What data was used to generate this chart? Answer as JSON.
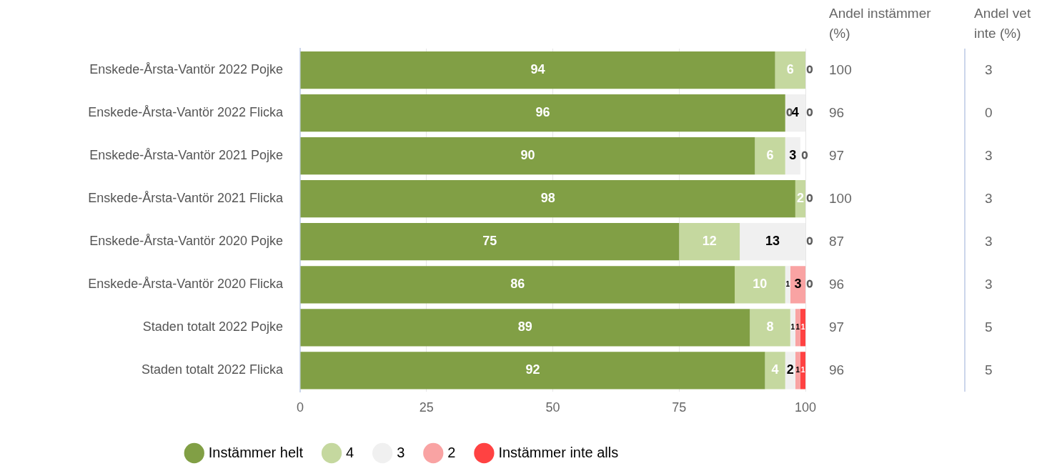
{
  "chart_data": {
    "type": "bar",
    "orientation": "horizontal",
    "stacked": true,
    "categories": [
      "Enskede-Årsta-Vantör 2022 Pojke",
      "Enskede-Årsta-Vantör 2022 Flicka",
      "Enskede-Årsta-Vantör 2021 Pojke",
      "Enskede-Årsta-Vantör 2021 Flicka",
      "Enskede-Årsta-Vantör 2020 Pojke",
      "Enskede-Årsta-Vantör 2020 Flicka",
      "Staden totalt 2022 Pojke",
      "Staden totalt 2022 Flicka"
    ],
    "series": [
      {
        "name": "Instämmer helt",
        "color": "#819f45",
        "values": [
          94,
          96,
          90,
          98,
          75,
          86,
          89,
          92
        ],
        "value_labels": [
          "94",
          "96",
          "90",
          "98",
          "75",
          "86",
          "89",
          "92"
        ]
      },
      {
        "name": "4",
        "color": "#c5d89f",
        "values": [
          6,
          0,
          6,
          2,
          12,
          10,
          8,
          4
        ],
        "value_labels": [
          "6",
          "0",
          "6",
          "2",
          "12",
          "10",
          "8",
          "4"
        ]
      },
      {
        "name": "3",
        "color": "#f0f0f0",
        "values": [
          0,
          4,
          3,
          0,
          13,
          1,
          1,
          2
        ],
        "value_labels": [
          null,
          "4",
          "3",
          null,
          "13",
          "1",
          "1",
          "2"
        ]
      },
      {
        "name": "2",
        "color": "#f9a3a3",
        "values": [
          0,
          0,
          0,
          0,
          0,
          3,
          1,
          1
        ],
        "value_labels": [
          null,
          null,
          null,
          null,
          null,
          "3",
          "1",
          "1"
        ]
      },
      {
        "name": "Instämmer inte alls",
        "color": "#ff4242",
        "values": [
          0,
          0,
          0,
          0,
          0,
          0,
          1,
          1
        ],
        "value_labels": [
          "0",
          "0",
          "0",
          "0",
          "0",
          "0",
          "1",
          "1"
        ]
      }
    ],
    "xlim": [
      0,
      100
    ],
    "xticks": [
      0,
      25,
      50,
      75,
      100
    ],
    "grid": "x",
    "legend": "bottom",
    "annotations": [
      "Andel instämmer (%)",
      "100",
      "96",
      "97",
      "100",
      "87",
      "96",
      "97",
      "96",
      "Andel vet inte (%)",
      "3",
      "0",
      "3",
      "3",
      "3",
      "3",
      "5",
      "5"
    ]
  }
}
